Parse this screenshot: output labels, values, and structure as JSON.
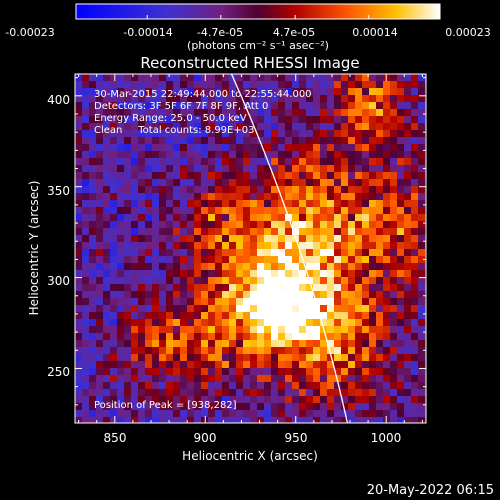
{
  "colorbar": {
    "tick_labels": [
      "-0.00023",
      "-0.00014",
      "-4.7e-05",
      "4.7e-05",
      "0.00014",
      "0.00023"
    ],
    "tick_values": [
      -0.00023,
      -0.00014,
      -4.7e-05,
      4.7e-05,
      0.00014,
      0.00023
    ],
    "range": [
      -0.00023,
      0.00023
    ],
    "units_text": "(photons cm⁻² s⁻¹ asec⁻²)"
  },
  "chart_data": {
    "type": "heatmap",
    "title": "Reconstructed RHESSI Image",
    "xlabel": "Heliocentric X (arcsec)",
    "ylabel": "Heliocentric Y (arcsec)",
    "xlim": [
      828,
      1022
    ],
    "ylim": [
      220,
      412
    ],
    "x_ticks": [
      850,
      900,
      950,
      1000
    ],
    "y_ticks": [
      250,
      300,
      350,
      400
    ],
    "x_tick_labels": [
      "850",
      "900",
      "950",
      "1000"
    ],
    "y_tick_labels": [
      "250",
      "300",
      "350",
      "400"
    ],
    "peak": [
      938,
      282
    ],
    "limb": {
      "center": [
        0,
        0
      ],
      "radius": 1003
    },
    "annotations": [
      "30-Mar-2015 22:49:44.000 to 22:55:44.000",
      "Detectors: 3F 5F 6F 7F 8F 9F, Att 0",
      "Energy Range: 25.0 - 50.0 keV",
      "Clean     Total counts: 8.99E+03"
    ],
    "peak_label": "Position of Peak = [938,282]"
  },
  "footer": {
    "timestamp": "20-May-2022 06:15"
  }
}
